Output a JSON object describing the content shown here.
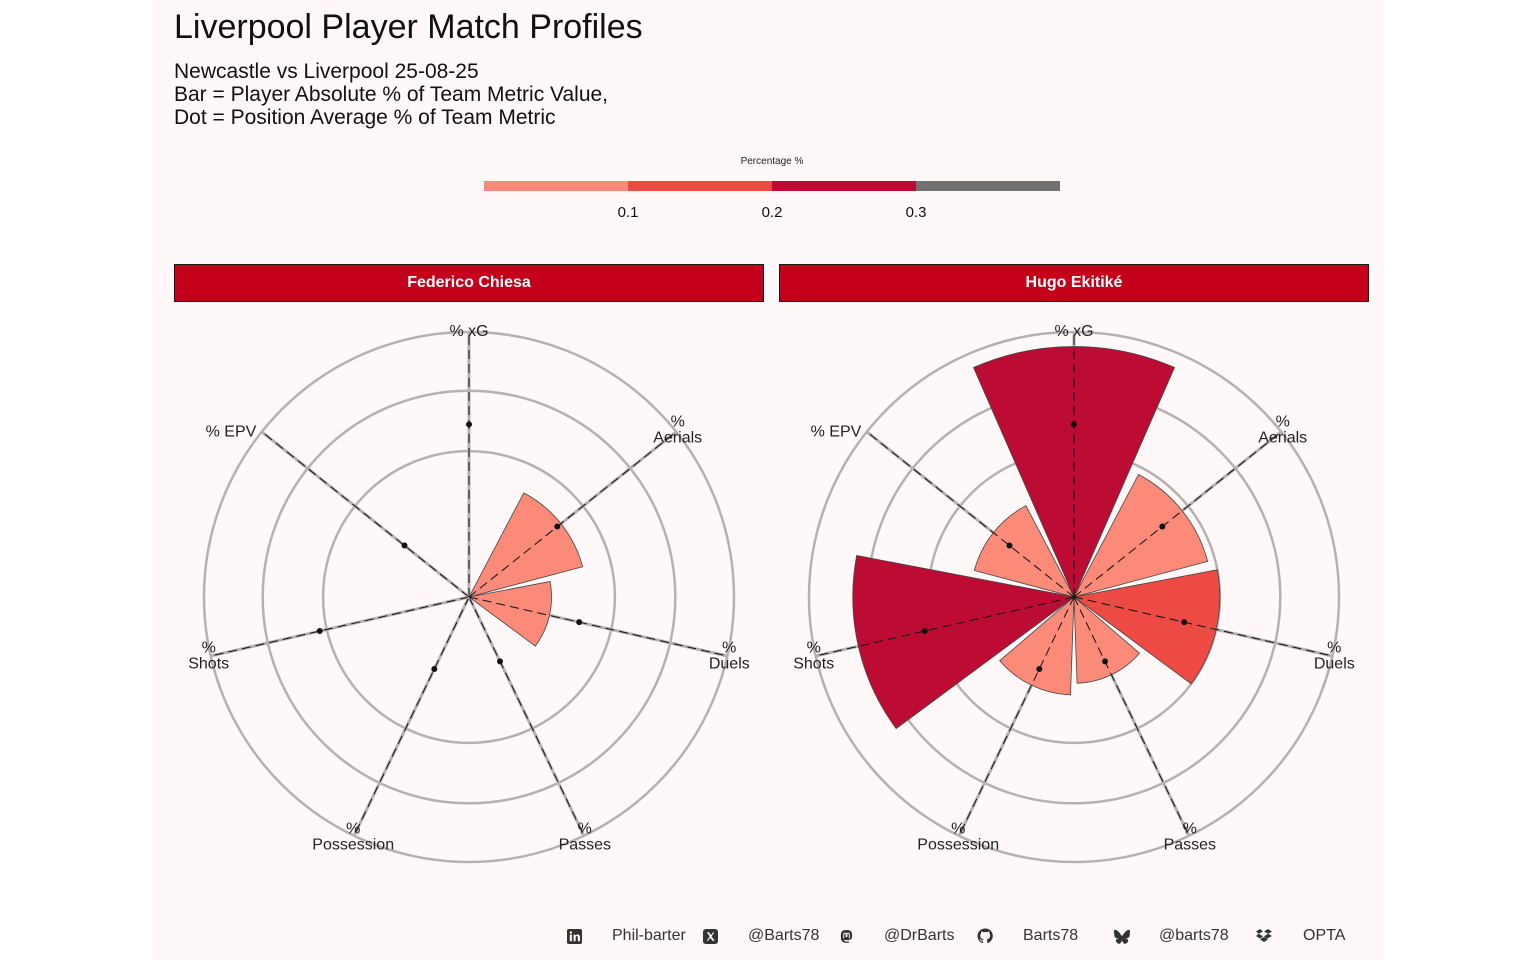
{
  "title": "Liverpool Player Match Profiles",
  "subtitle": [
    "Newcastle vs Liverpool 25-08-25",
    "Bar = Player Absolute % of Team Metric Value,",
    "Dot = Position Average % of Team Metric"
  ],
  "legend": {
    "title": "Percentage %",
    "ticks": [
      "0.1",
      "0.2",
      "0.3"
    ],
    "colors": [
      "#fb8a79",
      "#ee4a44",
      "#bd0c34",
      "#727272"
    ]
  },
  "colors": {
    "panel_bg": "#fff8f8",
    "strip": "#c4001a",
    "grid": "#b5b1b1"
  },
  "footer": [
    {
      "icon": "linkedin-icon",
      "label": "Phil-barter"
    },
    {
      "icon": "x-twitter-icon",
      "label": "@Barts78"
    },
    {
      "icon": "mastodon-icon",
      "label": "@DrBarts"
    },
    {
      "icon": "github-icon",
      "label": "Barts78"
    },
    {
      "icon": "bluesky-icon",
      "label": "@barts78"
    },
    {
      "icon": "dropbox-icon",
      "label": "OPTA"
    }
  ],
  "chart_data": [
    {
      "type": "polar-bar",
      "facet": "Federico Chiesa",
      "categories": [
        "% xG",
        "% Aerials",
        "% Duels",
        "% Passes",
        "% Possession",
        "% Shots",
        "% EPV"
      ],
      "axis_labels": [
        [
          "% xG"
        ],
        [
          "%",
          "Aerials"
        ],
        [
          "%",
          "Duels"
        ],
        [
          "%",
          "Passes"
        ],
        [
          "%",
          "Possession"
        ],
        [
          "%",
          "Shots"
        ],
        [
          "% EPV"
        ]
      ],
      "player_values": [
        0.0,
        0.065,
        0.032,
        0.0,
        0.0,
        0.0,
        0.0
      ],
      "position_avg": [
        0.14,
        0.06,
        0.06,
        0.024,
        0.03,
        0.11,
        0.032
      ],
      "rlim": [
        0,
        0.33
      ],
      "gridlines": [
        0.1,
        0.2,
        0.33
      ]
    },
    {
      "type": "polar-bar",
      "facet": "Hugo Ekitiké",
      "categories": [
        "% xG",
        "% Aerials",
        "% Duels",
        "% Passes",
        "% Possession",
        "% Shots",
        "% EPV"
      ],
      "axis_labels": [
        [
          "% xG"
        ],
        [
          "%",
          "Aerials"
        ],
        [
          "%",
          "Duels"
        ],
        [
          "%",
          "Passes"
        ],
        [
          "%",
          "Possession"
        ],
        [
          "%",
          "Shots"
        ],
        [
          "% EPV"
        ]
      ],
      "player_values": [
        0.295,
        0.09,
        0.1,
        0.035,
        0.045,
        0.23,
        0.05
      ],
      "position_avg": [
        0.14,
        0.06,
        0.06,
        0.024,
        0.03,
        0.11,
        0.032
      ],
      "rlim": [
        0,
        0.33
      ],
      "gridlines": [
        0.1,
        0.2,
        0.33
      ]
    }
  ]
}
